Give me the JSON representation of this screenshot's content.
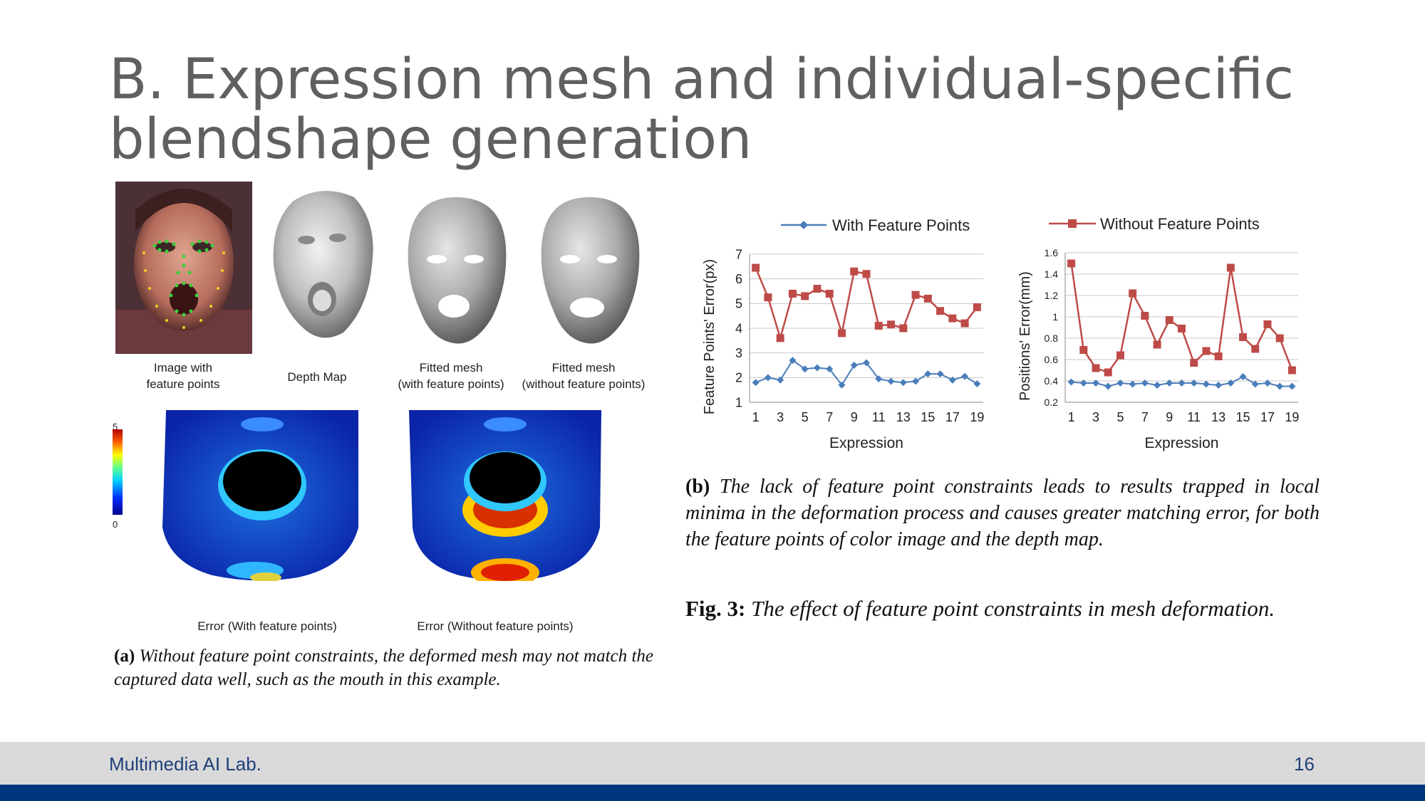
{
  "slide": {
    "title_line1": "B. Expression mesh and individual-specific",
    "title_line2": "blendshape generation",
    "footer_left": "Multimedia AI Lab.",
    "page_number": "16"
  },
  "figure_a": {
    "captions": {
      "image": [
        "Image with",
        "feature points"
      ],
      "depth": "Depth Map",
      "fitted_with": [
        "Fitted mesh",
        "(with feature points)"
      ],
      "fitted_without": [
        "Fitted mesh",
        "(without feature points)"
      ],
      "error_with": "Error (With feature points)",
      "error_without": "Error (Without feature points)"
    },
    "colorbar_max": "5",
    "colorbar_min": "0",
    "label": "(a)",
    "text": "Without feature point constraints, the deformed mesh may not match the captured data well, such as the mouth in this example."
  },
  "figure_b": {
    "label": "(b)",
    "text": "The lack of feature point constraints leads to results trapped in local minima in the deformation process and causes greater matching error, for both the feature points of color image and the depth map.",
    "fig_label": "Fig. 3:",
    "fig_text": "The effect of feature point constraints in mesh deformation."
  },
  "colors": {
    "with_series": "#4a7ebb",
    "without_series": "#be4b48",
    "footer_bar": "#d9d9d9",
    "footer_blue": "#003580"
  },
  "chart_data": [
    {
      "type": "line",
      "title": "",
      "xlabel": "Expression",
      "ylabel": "Feature Points' Error(px)",
      "x": [
        1,
        2,
        3,
        4,
        5,
        6,
        7,
        8,
        9,
        10,
        11,
        12,
        13,
        14,
        15,
        16,
        17,
        18,
        19
      ],
      "xticks": [
        "1",
        "3",
        "5",
        "7",
        "9",
        "11",
        "13",
        "15",
        "17",
        "19"
      ],
      "yticks": [
        "1",
        "2",
        "3",
        "4",
        "5",
        "6",
        "7"
      ],
      "ylim": [
        1,
        7
      ],
      "grid": true,
      "series": [
        {
          "name": "With Feature Points",
          "values": [
            1.8,
            2.0,
            1.9,
            2.7,
            2.35,
            2.4,
            2.35,
            1.7,
            2.5,
            2.6,
            1.95,
            1.85,
            1.8,
            1.85,
            2.15,
            2.15,
            1.9,
            2.05,
            1.75
          ]
        },
        {
          "name": "Without Feature Points",
          "values": [
            6.45,
            5.25,
            3.6,
            5.4,
            5.3,
            5.6,
            5.4,
            3.8,
            6.3,
            6.2,
            4.1,
            4.15,
            4.0,
            5.35,
            5.2,
            4.7,
            4.4,
            4.2,
            4.85
          ]
        }
      ]
    },
    {
      "type": "line",
      "title": "",
      "xlabel": "Expression",
      "ylabel": "Positions' Error(mm)",
      "x": [
        1,
        2,
        3,
        4,
        5,
        6,
        7,
        8,
        9,
        10,
        11,
        12,
        13,
        14,
        15,
        16,
        17,
        18,
        19
      ],
      "xticks": [
        "1",
        "3",
        "5",
        "7",
        "9",
        "11",
        "13",
        "15",
        "17",
        "19"
      ],
      "yticks": [
        "0.2",
        "0.4",
        "0.6",
        "0.8",
        "1",
        "1.2",
        "1.4",
        "1.6"
      ],
      "ylim": [
        0.2,
        1.6
      ],
      "grid": true,
      "series": [
        {
          "name": "With Feature Points",
          "values": [
            0.39,
            0.38,
            0.38,
            0.35,
            0.38,
            0.37,
            0.38,
            0.36,
            0.38,
            0.38,
            0.38,
            0.37,
            0.36,
            0.38,
            0.44,
            0.37,
            0.38,
            0.35,
            0.35
          ]
        },
        {
          "name": "Without Feature Points",
          "values": [
            1.5,
            0.69,
            0.52,
            0.48,
            0.64,
            1.22,
            1.01,
            0.74,
            0.97,
            0.89,
            0.57,
            0.68,
            0.63,
            1.46,
            0.81,
            0.7,
            0.93,
            0.8,
            0.5
          ]
        }
      ]
    }
  ]
}
